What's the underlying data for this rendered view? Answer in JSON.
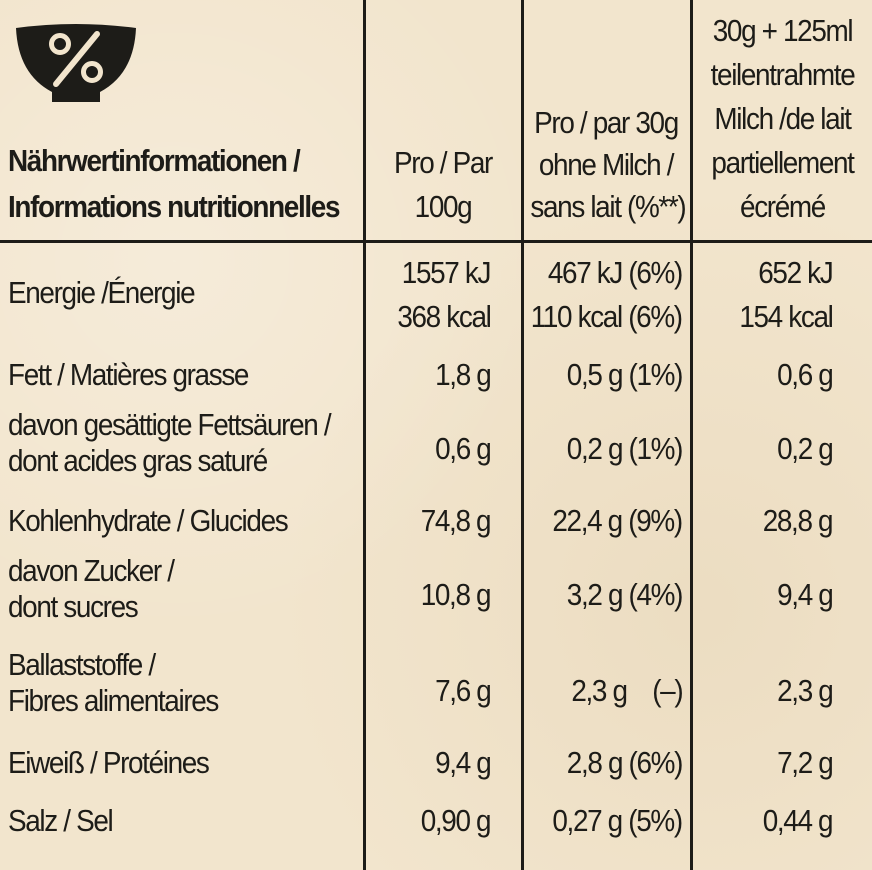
{
  "header": {
    "label_line1": "Nährwertinformationen /",
    "label_line2": "Informations nutritionnelles",
    "col1_line1": "Pro / Par",
    "col1_line2": "100g",
    "col2_line1": "Pro / par 30g",
    "col2_line2": "ohne Milch /",
    "col2_line3": "sans lait (%**)",
    "col3_line1": "30g + 125ml",
    "col3_line2": "teilentrahmte",
    "col3_line3": "Milch /de lait",
    "col3_line4": "partiellement",
    "col3_line5": "écrémé"
  },
  "logo": {
    "symbol": "%",
    "icon": "bowl-percent-icon",
    "color": "#1d1c18"
  },
  "rows": [
    {
      "label": [
        "Energie /Énergie"
      ],
      "per100g": [
        "1557 kJ",
        "368 kcal"
      ],
      "per30g": [
        "467 kJ (6%)",
        "110 kcal (6%)"
      ],
      "withMilk": [
        "652 kJ",
        "154 kcal"
      ]
    },
    {
      "label": [
        "Fett / Matières grasse"
      ],
      "per100g": [
        "1,8 g"
      ],
      "per30g": [
        "0,5 g (1%)"
      ],
      "withMilk": [
        "0,6 g"
      ]
    },
    {
      "label": [
        "davon gesättigte Fettsäuren /",
        "dont acides gras saturé"
      ],
      "per100g": [
        "0,6 g"
      ],
      "per30g": [
        "0,2 g (1%)"
      ],
      "withMilk": [
        "0,2 g"
      ]
    },
    {
      "label": [
        "Kohlenhydrate / Glucides"
      ],
      "per100g": [
        "74,8 g"
      ],
      "per30g": [
        "22,4 g (9%)"
      ],
      "withMilk": [
        "28,8 g"
      ]
    },
    {
      "label": [
        "davon Zucker /",
        "dont sucres"
      ],
      "per100g": [
        "10,8 g"
      ],
      "per30g": [
        "3,2 g (4%)"
      ],
      "withMilk": [
        "9,4 g"
      ]
    },
    {
      "label": [
        "Ballaststoffe /",
        "Fibres alimentaires"
      ],
      "per100g": [
        "7,6 g"
      ],
      "per30g": [
        "2,3 g    (–)"
      ],
      "withMilk": [
        "2,3 g"
      ]
    },
    {
      "label": [
        "Eiweiß / Protéines"
      ],
      "per100g": [
        "9,4 g"
      ],
      "per30g": [
        "2,8 g (6%)"
      ],
      "withMilk": [
        "7,2 g"
      ]
    },
    {
      "label": [
        "Salz / Sel"
      ],
      "per100g": [
        "0,90 g"
      ],
      "per30g": [
        "0,27 g (5%)"
      ],
      "withMilk": [
        "0,44 g"
      ]
    }
  ]
}
